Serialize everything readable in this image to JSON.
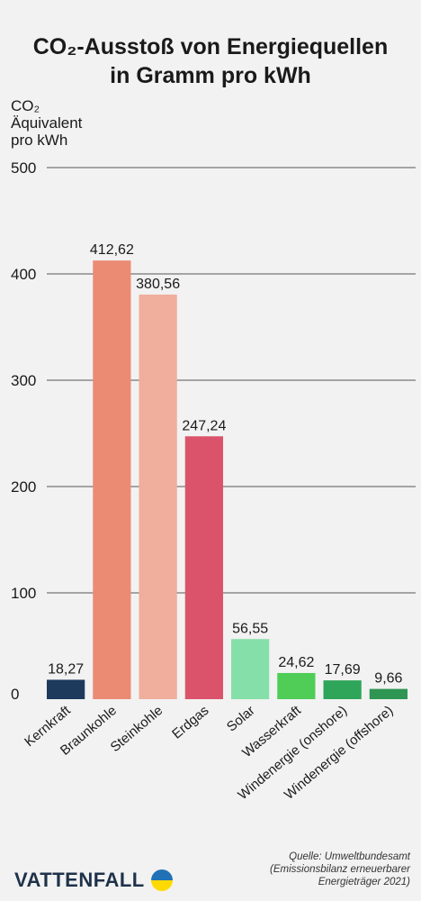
{
  "title": {
    "line1": "CO₂-Ausstoß von Energiequellen",
    "line2": "in Gramm pro kWh"
  },
  "source": {
    "line1": "Quelle: Umweltbundesamt",
    "line2": "(Emissionsbilanz erneuerbarer",
    "line3": "Energieträger 2021)"
  },
  "logo": {
    "text": "VATTENFALL",
    "colors": {
      "blue": "#2071b5",
      "yellow": "#ffda00"
    }
  },
  "chart_data": {
    "type": "bar",
    "title": "CO₂-Ausstoß von Energiequellen in Gramm pro kWh",
    "ylabel_lines": [
      "CO₂",
      "Äquivalent",
      "pro kWh"
    ],
    "ylim": [
      0,
      500
    ],
    "yticks": [
      0,
      100,
      200,
      300,
      400,
      500
    ],
    "grid": true,
    "categories": [
      "Kernkraft",
      "Braunkohle",
      "Steinkohle",
      "Erdgas",
      "Solar",
      "Wasserkraft",
      "Windenergie (onshore)",
      "Windenergie (offshore)"
    ],
    "values": [
      18.27,
      412.62,
      380.56,
      247.24,
      56.55,
      24.62,
      17.69,
      9.66
    ],
    "value_labels": [
      "18,27",
      "412,62",
      "380,56",
      "247,24",
      "56,55",
      "24,62",
      "17,69",
      "9,66"
    ],
    "colors": [
      "#1d3a5c",
      "#ec8b74",
      "#f0ae9c",
      "#da536b",
      "#85dfa8",
      "#4fcd57",
      "#2fa55a",
      "#2e9552"
    ]
  }
}
